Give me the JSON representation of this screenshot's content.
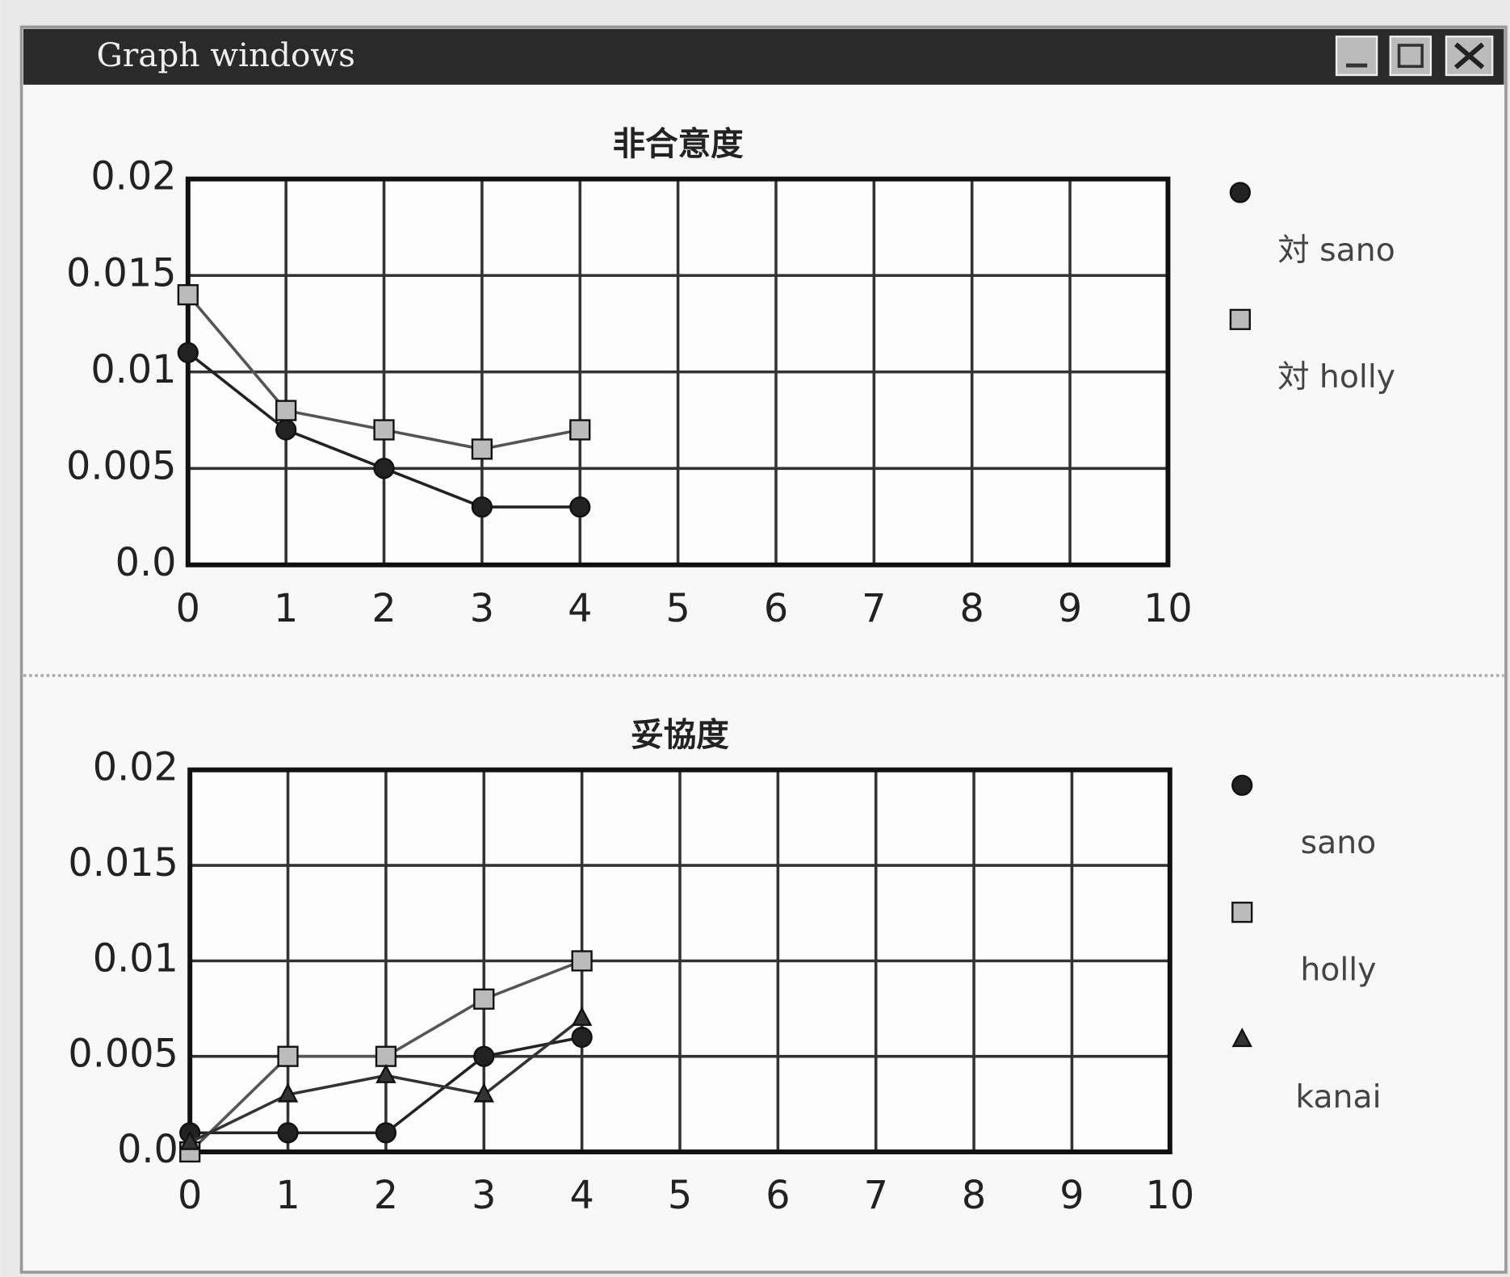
{
  "window": {
    "title": "Graph windows"
  },
  "chart_data": [
    {
      "type": "line",
      "title": "非合意度",
      "x": [
        0,
        1,
        2,
        3,
        4
      ],
      "series": [
        {
          "name": "対 sano",
          "color": "#222222",
          "marker": "circle",
          "values": [
            0.011,
            0.007,
            0.005,
            0.003,
            0.003
          ]
        },
        {
          "name": "対 holly",
          "color": "#555555",
          "marker": "square",
          "values": [
            0.014,
            0.008,
            0.007,
            0.006,
            0.007
          ]
        }
      ],
      "xlim": [
        0,
        10
      ],
      "xticks": [
        0,
        1,
        2,
        3,
        4,
        5,
        6,
        7,
        8,
        9,
        10
      ],
      "ylim": [
        0,
        0.02
      ],
      "yticks": [
        {
          "value": 0,
          "label": "0.0"
        },
        0.005,
        0.01,
        0.015,
        0.02
      ],
      "grid": true,
      "legend": "right"
    },
    {
      "type": "line",
      "title": "妥協度",
      "x": [
        0,
        1,
        2,
        3,
        4
      ],
      "series": [
        {
          "name": "sano",
          "color": "#222222",
          "marker": "circle",
          "values": [
            0.001,
            0.001,
            0.001,
            0.005,
            0.006
          ]
        },
        {
          "name": "holly",
          "color": "#555555",
          "marker": "square",
          "values": [
            0,
            0.005,
            0.005,
            0.008,
            0.01
          ]
        },
        {
          "name": "kanai",
          "color": "#333333",
          "marker": "triangle",
          "values": [
            0.0005,
            0.003,
            0.004,
            0.003,
            0.007
          ]
        }
      ],
      "xlim": [
        0,
        10
      ],
      "xticks": [
        0,
        1,
        2,
        3,
        4,
        5,
        6,
        7,
        8,
        9,
        10
      ],
      "ylim": [
        0,
        0.02
      ],
      "yticks": [
        {
          "value": 0,
          "label": "0.0"
        },
        0.005,
        0.01,
        0.015,
        0.02
      ],
      "grid": true,
      "legend": "right"
    }
  ]
}
